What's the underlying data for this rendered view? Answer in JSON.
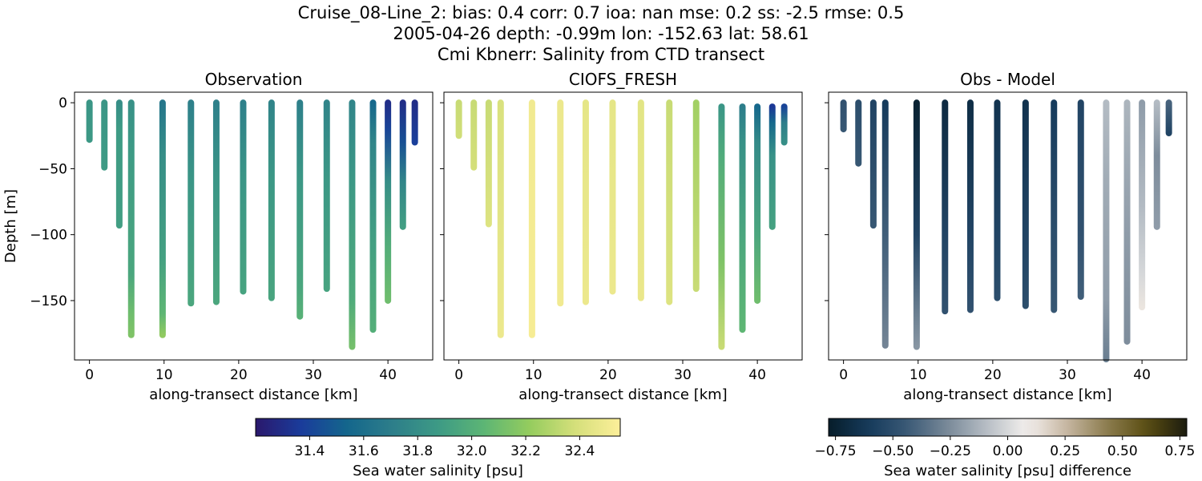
{
  "figure": {
    "title_lines": [
      "Cruise_08-Line_2: bias: 0.4  corr: 0.7  ioa: nan  mse: 0.2  ss: -2.5  rmse: 0.5",
      "2005-04-26 depth: -0.99m lon: -152.63 lat: 58.61",
      "Cmi Kbnerr: Salinity from CTD transect"
    ]
  },
  "chart_data": [
    {
      "type": "scatter",
      "title": "Observation",
      "xlabel": "along-transect distance [km]",
      "ylabel": "Depth [m]",
      "xlim": [
        -2,
        46
      ],
      "ylim": [
        -195,
        8
      ],
      "xticks": [
        0,
        10,
        20,
        30,
        40
      ],
      "xtick_labels": [
        "0",
        "10",
        "20",
        "30",
        "40"
      ],
      "yticks": [
        0,
        -50,
        -100,
        -150
      ],
      "ytick_labels": [
        "0",
        "−50",
        "−100",
        "−150"
      ],
      "colormap": "haline",
      "clim": [
        31.2,
        32.55
      ],
      "casts": [
        {
          "x": 0,
          "max_depth": 28,
          "values": [
            [
              0,
              31.85
            ],
            [
              28,
              31.86
            ]
          ]
        },
        {
          "x": 2,
          "max_depth": 49,
          "values": [
            [
              0,
              31.85
            ],
            [
              49,
              31.88
            ]
          ]
        },
        {
          "x": 4,
          "max_depth": 93,
          "values": [
            [
              0,
              31.8
            ],
            [
              20,
              31.88
            ],
            [
              93,
              31.9
            ]
          ]
        },
        {
          "x": 5.6,
          "max_depth": 176,
          "values": [
            [
              0,
              31.82
            ],
            [
              40,
              31.88
            ],
            [
              130,
              31.95
            ],
            [
              160,
              32.1
            ],
            [
              176,
              32.15
            ]
          ]
        },
        {
          "x": 9.8,
          "max_depth": 176,
          "values": [
            [
              0,
              31.65
            ],
            [
              40,
              31.8
            ],
            [
              120,
              31.92
            ],
            [
              160,
              32.05
            ],
            [
              176,
              32.2
            ]
          ]
        },
        {
          "x": 13.6,
          "max_depth": 152,
          "values": [
            [
              0,
              31.72
            ],
            [
              60,
              31.85
            ],
            [
              152,
              31.95
            ]
          ]
        },
        {
          "x": 17,
          "max_depth": 151,
          "values": [
            [
              0,
              31.72
            ],
            [
              60,
              31.85
            ],
            [
              151,
              31.95
            ]
          ]
        },
        {
          "x": 20.6,
          "max_depth": 143,
          "values": [
            [
              0,
              31.72
            ],
            [
              60,
              31.85
            ],
            [
              143,
              31.93
            ]
          ]
        },
        {
          "x": 24.4,
          "max_depth": 148,
          "values": [
            [
              0,
              31.74
            ],
            [
              60,
              31.86
            ],
            [
              148,
              31.94
            ]
          ]
        },
        {
          "x": 28.2,
          "max_depth": 162,
          "values": [
            [
              0,
              31.72
            ],
            [
              60,
              31.86
            ],
            [
              140,
              31.95
            ],
            [
              162,
              32.02
            ]
          ]
        },
        {
          "x": 31.8,
          "max_depth": 141,
          "values": [
            [
              0,
              31.74
            ],
            [
              60,
              31.86
            ],
            [
              141,
              31.93
            ]
          ]
        },
        {
          "x": 35.2,
          "max_depth": 185,
          "values": [
            [
              0,
              31.75
            ],
            [
              60,
              31.86
            ],
            [
              150,
              31.98
            ],
            [
              185,
              32.12
            ]
          ]
        },
        {
          "x": 38,
          "max_depth": 172,
          "values": [
            [
              0,
              31.55
            ],
            [
              30,
              31.75
            ],
            [
              100,
              31.9
            ],
            [
              172,
              32.0
            ]
          ]
        },
        {
          "x": 40,
          "max_depth": 150,
          "values": [
            [
              0,
              31.3
            ],
            [
              20,
              31.4
            ],
            [
              60,
              31.8
            ],
            [
              110,
              32.0
            ],
            [
              150,
              32.1
            ]
          ]
        },
        {
          "x": 42,
          "max_depth": 94,
          "values": [
            [
              0,
              31.3
            ],
            [
              30,
              31.45
            ],
            [
              60,
              31.75
            ],
            [
              94,
              31.9
            ]
          ]
        },
        {
          "x": 43.6,
          "max_depth": 30,
          "values": [
            [
              0,
              31.3
            ],
            [
              30,
              31.38
            ]
          ]
        }
      ]
    },
    {
      "type": "scatter",
      "title": "CIOFS_FRESH",
      "xlabel": "along-transect distance [km]",
      "ylabel": "",
      "xlim": [
        -2,
        46
      ],
      "ylim": [
        -195,
        8
      ],
      "xticks": [
        0,
        10,
        20,
        30,
        40
      ],
      "xtick_labels": [
        "0",
        "10",
        "20",
        "30",
        "40"
      ],
      "yticks": [
        0,
        -50,
        -100,
        -150
      ],
      "ytick_labels": [],
      "colormap": "haline",
      "clim": [
        31.2,
        32.55
      ],
      "casts": [
        {
          "x": 0,
          "max_depth": 25,
          "values": [
            [
              0,
              32.35
            ],
            [
              25,
              32.37
            ]
          ]
        },
        {
          "x": 2,
          "max_depth": 49,
          "values": [
            [
              0,
              32.35
            ],
            [
              49,
              32.38
            ]
          ]
        },
        {
          "x": 4,
          "max_depth": 92,
          "values": [
            [
              0,
              32.35
            ],
            [
              92,
              32.42
            ]
          ]
        },
        {
          "x": 5.6,
          "max_depth": 176,
          "values": [
            [
              0,
              32.4
            ],
            [
              176,
              32.48
            ]
          ]
        },
        {
          "x": 9.8,
          "max_depth": 176,
          "values": [
            [
              0,
              32.5
            ],
            [
              176,
              32.52
            ]
          ]
        },
        {
          "x": 13.6,
          "max_depth": 152,
          "values": [
            [
              0,
              32.48
            ],
            [
              152,
              32.5
            ]
          ]
        },
        {
          "x": 17,
          "max_depth": 151,
          "values": [
            [
              0,
              32.45
            ],
            [
              151,
              32.48
            ]
          ]
        },
        {
          "x": 20.6,
          "max_depth": 143,
          "values": [
            [
              0,
              32.45
            ],
            [
              143,
              32.48
            ]
          ]
        },
        {
          "x": 24.4,
          "max_depth": 148,
          "values": [
            [
              0,
              32.44
            ],
            [
              148,
              32.47
            ]
          ]
        },
        {
          "x": 28.2,
          "max_depth": 151,
          "values": [
            [
              0,
              32.35
            ],
            [
              151,
              32.42
            ]
          ]
        },
        {
          "x": 31.8,
          "max_depth": 141,
          "values": [
            [
              0,
              32.25
            ],
            [
              141,
              32.35
            ]
          ]
        },
        {
          "x": 35.2,
          "max_depth": 185,
          "values": [
            [
              3,
              31.85
            ],
            [
              40,
              31.98
            ],
            [
              120,
              32.15
            ],
            [
              185,
              32.35
            ]
          ]
        },
        {
          "x": 38,
          "max_depth": 172,
          "values": [
            [
              3,
              31.7
            ],
            [
              30,
              31.82
            ],
            [
              100,
              31.95
            ],
            [
              172,
              32.05
            ]
          ]
        },
        {
          "x": 40,
          "max_depth": 150,
          "values": [
            [
              3,
              31.55
            ],
            [
              30,
              31.78
            ],
            [
              100,
              31.95
            ],
            [
              150,
              32.1
            ]
          ]
        },
        {
          "x": 42,
          "max_depth": 94,
          "values": [
            [
              3,
              31.35
            ],
            [
              15,
              31.55
            ],
            [
              40,
              31.82
            ],
            [
              94,
              31.92
            ]
          ]
        },
        {
          "x": 43.6,
          "max_depth": 30,
          "values": [
            [
              3,
              31.4
            ],
            [
              15,
              31.7
            ],
            [
              30,
              31.8
            ]
          ]
        }
      ]
    },
    {
      "type": "scatter",
      "title": "Obs - Model",
      "xlabel": "along-transect distance [km]",
      "ylabel": "",
      "xlim": [
        -2,
        46
      ],
      "ylim": [
        -195,
        8
      ],
      "xticks": [
        0,
        10,
        20,
        30,
        40
      ],
      "xtick_labels": [
        "0",
        "10",
        "20",
        "30",
        "40"
      ],
      "yticks": [
        0,
        -50,
        -100,
        -150
      ],
      "ytick_labels": [],
      "colormap": "diff",
      "clim": [
        -0.78,
        0.78
      ],
      "casts": [
        {
          "x": 0,
          "max_depth": 20,
          "values": [
            [
              0,
              -0.48
            ],
            [
              20,
              -0.45
            ]
          ]
        },
        {
          "x": 2,
          "max_depth": 46,
          "values": [
            [
              0,
              -0.5
            ],
            [
              46,
              -0.45
            ]
          ]
        },
        {
          "x": 4,
          "max_depth": 93,
          "values": [
            [
              0,
              -0.55
            ],
            [
              93,
              -0.45
            ]
          ]
        },
        {
          "x": 5.6,
          "max_depth": 184,
          "values": [
            [
              0,
              -0.6
            ],
            [
              100,
              -0.42
            ],
            [
              160,
              -0.32
            ],
            [
              184,
              -0.28
            ]
          ]
        },
        {
          "x": 9.8,
          "max_depth": 185,
          "values": [
            [
              0,
              -0.75
            ],
            [
              100,
              -0.55
            ],
            [
              160,
              -0.3
            ],
            [
              185,
              -0.22
            ]
          ]
        },
        {
          "x": 13.6,
          "max_depth": 158,
          "values": [
            [
              0,
              -0.7
            ],
            [
              100,
              -0.55
            ],
            [
              158,
              -0.48
            ]
          ]
        },
        {
          "x": 17,
          "max_depth": 157,
          "values": [
            [
              0,
              -0.68
            ],
            [
              100,
              -0.55
            ],
            [
              157,
              -0.48
            ]
          ]
        },
        {
          "x": 20.6,
          "max_depth": 148,
          "values": [
            [
              0,
              -0.65
            ],
            [
              100,
              -0.55
            ],
            [
              148,
              -0.5
            ]
          ]
        },
        {
          "x": 24.4,
          "max_depth": 154,
          "values": [
            [
              0,
              -0.65
            ],
            [
              100,
              -0.55
            ],
            [
              154,
              -0.5
            ]
          ]
        },
        {
          "x": 28.2,
          "max_depth": 157,
          "values": [
            [
              0,
              -0.6
            ],
            [
              100,
              -0.5
            ],
            [
              157,
              -0.45
            ]
          ]
        },
        {
          "x": 31.8,
          "max_depth": 147,
          "values": [
            [
              0,
              -0.55
            ],
            [
              100,
              -0.48
            ],
            [
              147,
              -0.42
            ]
          ]
        },
        {
          "x": 35.2,
          "max_depth": 195,
          "values": [
            [
              0,
              -0.1
            ],
            [
              60,
              -0.15
            ],
            [
              150,
              -0.2
            ],
            [
              195,
              -0.3
            ]
          ]
        },
        {
          "x": 38,
          "max_depth": 181,
          "values": [
            [
              0,
              -0.12
            ],
            [
              100,
              -0.2
            ],
            [
              181,
              -0.25
            ]
          ]
        },
        {
          "x": 40,
          "max_depth": 155,
          "values": [
            [
              0,
              -0.2
            ],
            [
              80,
              -0.1
            ],
            [
              130,
              0.0
            ],
            [
              155,
              0.12
            ]
          ]
        },
        {
          "x": 42,
          "max_depth": 94,
          "values": [
            [
              0,
              -0.1
            ],
            [
              40,
              -0.25
            ],
            [
              94,
              -0.2
            ]
          ]
        },
        {
          "x": 43.6,
          "max_depth": 23,
          "values": [
            [
              0,
              -0.4
            ],
            [
              23,
              -0.55
            ]
          ]
        }
      ]
    }
  ],
  "colorbars": [
    {
      "label": "Sea water salinity [psu]",
      "colormap": "haline",
      "range": [
        31.2,
        32.55
      ],
      "ticks": [
        31.4,
        31.6,
        31.8,
        32.0,
        32.2,
        32.4
      ],
      "tick_labels": [
        "31.4",
        "31.6",
        "31.8",
        "32.0",
        "32.2",
        "32.4"
      ]
    },
    {
      "label": "Sea water salinity [psu] difference",
      "colormap": "diff",
      "range": [
        -0.78,
        0.78
      ],
      "ticks": [
        -0.75,
        -0.5,
        -0.25,
        0.0,
        0.25,
        0.5,
        0.75
      ],
      "tick_labels": [
        "−0.75",
        "−0.50",
        "−0.25",
        "0.00",
        "0.25",
        "0.50",
        "0.75"
      ]
    }
  ],
  "colors": {
    "haline": [
      "#2a186c",
      "#1a3c9b",
      "#14668c",
      "#2d7e8a",
      "#3d9a85",
      "#5cb575",
      "#94cc5e",
      "#d4df7a",
      "#fdef9a"
    ],
    "diff": [
      "#071d2a",
      "#153a5b",
      "#3b5a76",
      "#7a8a99",
      "#b8bfc6",
      "#f4f0ee",
      "#c5b5a0",
      "#8b7c4d",
      "#5a4d12",
      "#1b1c0f"
    ]
  }
}
